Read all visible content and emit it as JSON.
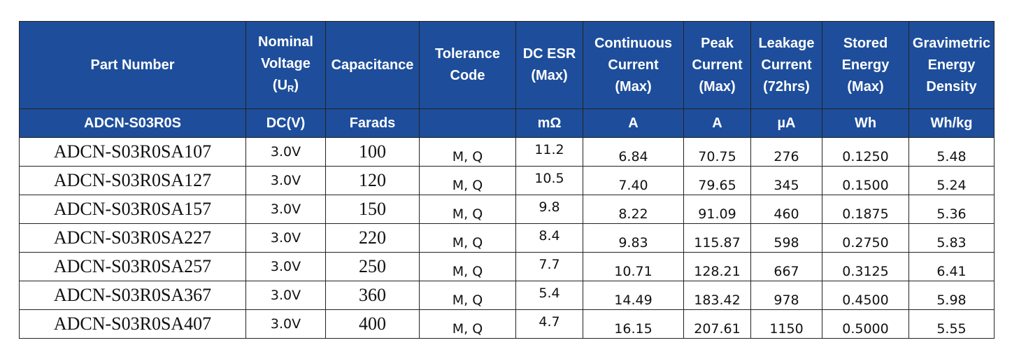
{
  "header": {
    "part_number": "Part Number",
    "nominal_voltage": [
      "Nominal",
      "Voltage"
    ],
    "nominal_voltage_symbol": "U",
    "nominal_voltage_subscript": "R",
    "capacitance": "Capacitance",
    "tolerance": [
      "Tolerance",
      "Code"
    ],
    "dc_esr": [
      "DC ESR",
      "(Max)"
    ],
    "continuous_current": [
      "Continuous",
      "Current",
      "(Max)"
    ],
    "peak_current": [
      "Peak",
      "Current",
      "(Max)"
    ],
    "leakage_current": [
      "Leakage",
      "Current",
      "(72hrs)"
    ],
    "stored_energy": [
      "Stored",
      "Energy",
      "(Max)"
    ],
    "gravimetric": [
      "Gravimetric",
      "Energy",
      "Density"
    ]
  },
  "units": [
    "ADCN-S03R0S",
    "DC(V)",
    "Farads",
    "",
    "mΩ",
    "A",
    "A",
    "µA",
    "Wh",
    "Wh/kg"
  ],
  "rows": [
    [
      "ADCN-S03R0SA107",
      "3.0V",
      "100",
      "M, Q",
      "11.2",
      "6.84",
      "70.75",
      "276",
      "0.1250",
      "5.48"
    ],
    [
      "ADCN-S03R0SA127",
      "3.0V",
      "120",
      "M, Q",
      "10.5",
      "7.40",
      "79.65",
      "345",
      "0.1500",
      "5.24"
    ],
    [
      "ADCN-S03R0SA157",
      "3.0V",
      "150",
      "M, Q",
      "9.8",
      "8.22",
      "91.09",
      "460",
      "0.1875",
      "5.36"
    ],
    [
      "ADCN-S03R0SA227",
      "3.0V",
      "220",
      "M, Q",
      "8.4",
      "9.83",
      "115.87",
      "598",
      "0.2750",
      "5.83"
    ],
    [
      "ADCN-S03R0SA257",
      "3.0V",
      "250",
      "M, Q",
      "7.7",
      "10.71",
      "128.21",
      "667",
      "0.3125",
      "6.41"
    ],
    [
      "ADCN-S03R0SA367",
      "3.0V",
      "360",
      "M, Q",
      "5.4",
      "14.49",
      "183.42",
      "978",
      "0.4500",
      "5.98"
    ],
    [
      "ADCN-S03R0SA407",
      "3.0V",
      "400",
      "M, Q",
      "4.7",
      "16.15",
      "207.61",
      "1150",
      "0.5000",
      "5.55"
    ]
  ]
}
